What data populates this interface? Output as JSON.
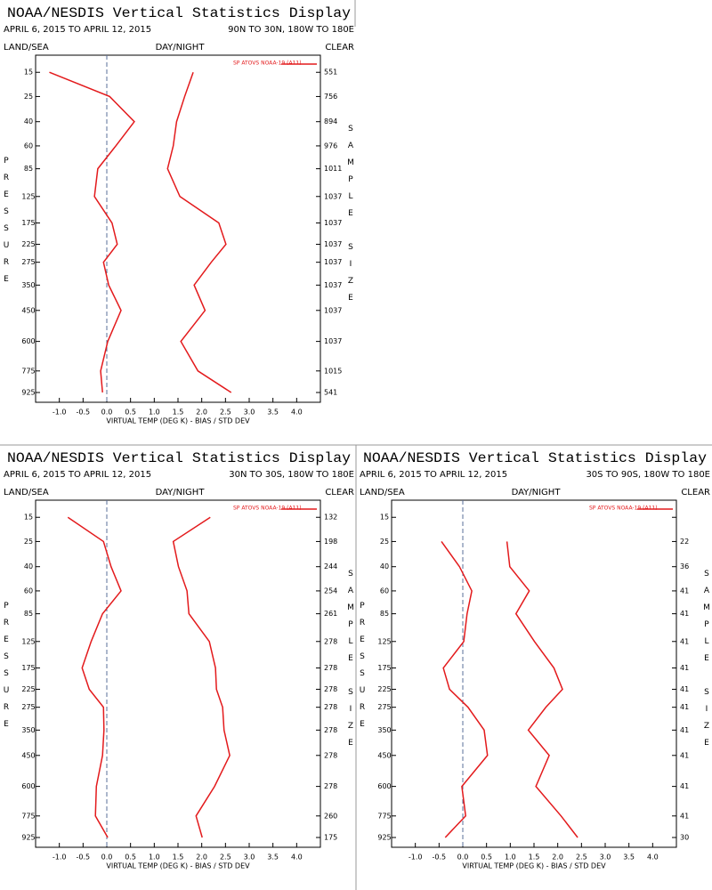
{
  "chart_data": [
    {
      "type": "profile",
      "title": "NOAA/NESDIS Vertical Statistics Display",
      "period": "APRIL 6, 2015 TO APRIL 12, 2015",
      "region": "90N TO 30N, 180W TO 180E",
      "header_left": "LAND/SEA",
      "header_center": "DAY/NIGHT",
      "header_right": "CLEAR",
      "y_label": "PRESSURE",
      "y2_label": "SAMPLE SIZE",
      "x_label": "VIRTUAL TEMP (DEG K) - BIAS / STD DEV",
      "y": [
        15,
        25,
        40,
        60,
        85,
        125,
        175,
        225,
        275,
        350,
        450,
        600,
        775,
        925
      ],
      "yscale": "fourth-root",
      "ylim": [
        10,
        1000
      ],
      "yticks": [
        15,
        25,
        40,
        60,
        85,
        125,
        175,
        225,
        275,
        350,
        450,
        600,
        775,
        925
      ],
      "xlim": [
        -1.5,
        4.5
      ],
      "xticks": [
        {
          "value": -1,
          "label": "-1.0"
        },
        {
          "value": -0.5,
          "label": "-0.5"
        },
        {
          "value": 0,
          "label": "0.0"
        },
        {
          "value": 0.5,
          "label": "0.5"
        },
        {
          "value": 1,
          "label": "1.0"
        },
        {
          "value": 1.5,
          "label": "1.5"
        },
        {
          "value": 2,
          "label": "2.0"
        },
        {
          "value": 2.5,
          "label": "2.5"
        },
        {
          "value": 3,
          "label": "3.0"
        },
        {
          "value": 3.5,
          "label": "3.5"
        },
        {
          "value": 4,
          "label": "4.0"
        }
      ],
      "zero_line": true,
      "series": [
        {
          "name": "SP ATOVS NOAA-19 (A11)",
          "color": "#e31a1c",
          "bias": [
            -1.21,
            0.06,
            0.58,
            0.19,
            -0.19,
            -0.26,
            0.11,
            0.22,
            -0.07,
            0.04,
            0.3,
            0.02,
            -0.13,
            -0.09
          ],
          "std_dev": [
            1.82,
            1.64,
            1.47,
            1.4,
            1.28,
            1.54,
            2.36,
            2.51,
            2.2,
            1.84,
            2.07,
            1.56,
            1.92,
            2.62
          ]
        }
      ],
      "sample_size": [
        551,
        756,
        894,
        976,
        1011,
        1037,
        1037,
        1037,
        1037,
        1037,
        1037,
        1037,
        1015,
        541
      ]
    },
    {
      "type": "profile",
      "title": "NOAA/NESDIS Vertical Statistics Display",
      "period": "APRIL 6, 2015 TO APRIL 12, 2015",
      "region": "30N TO 30S, 180W TO 180E",
      "header_left": "LAND/SEA",
      "header_center": "DAY/NIGHT",
      "header_right": "CLEAR",
      "y_label": "PRESSURE",
      "y2_label": "SAMPLE SIZE",
      "x_label": "VIRTUAL TEMP (DEG K) - BIAS / STD DEV",
      "y": [
        15,
        25,
        40,
        60,
        85,
        125,
        175,
        225,
        275,
        350,
        450,
        600,
        775,
        925
      ],
      "yscale": "fourth-root",
      "ylim": [
        10,
        1000
      ],
      "yticks": [
        15,
        25,
        40,
        60,
        85,
        125,
        175,
        225,
        275,
        350,
        450,
        600,
        775,
        925
      ],
      "xlim": [
        -1.5,
        4.5
      ],
      "xticks": [
        {
          "value": -1,
          "label": "-1.0"
        },
        {
          "value": -0.5,
          "label": "-0.5"
        },
        {
          "value": 0,
          "label": "0.0"
        },
        {
          "value": 0.5,
          "label": "0.5"
        },
        {
          "value": 1,
          "label": "1.0"
        },
        {
          "value": 1.5,
          "label": "1.5"
        },
        {
          "value": 2,
          "label": "2.0"
        },
        {
          "value": 2.5,
          "label": "2.5"
        },
        {
          "value": 3,
          "label": "3.0"
        },
        {
          "value": 3.5,
          "label": "3.5"
        },
        {
          "value": 4,
          "label": "4.0"
        }
      ],
      "zero_line": true,
      "series": [
        {
          "name": "SP ATOVS NOAA-19 (A11)",
          "color": "#e31a1c",
          "bias": [
            -0.82,
            -0.07,
            0.09,
            0.3,
            -0.09,
            -0.33,
            -0.52,
            -0.37,
            -0.07,
            -0.06,
            -0.09,
            -0.22,
            -0.24,
            0.02
          ],
          "std_dev": [
            2.18,
            1.4,
            1.51,
            1.69,
            1.73,
            2.16,
            2.29,
            2.31,
            2.44,
            2.47,
            2.59,
            2.27,
            1.88,
            2.01
          ]
        }
      ],
      "sample_size": [
        132,
        198,
        244,
        254,
        261,
        278,
        278,
        278,
        278,
        278,
        278,
        278,
        260,
        175
      ]
    },
    {
      "type": "profile",
      "title": "NOAA/NESDIS Vertical Statistics Display",
      "period": "APRIL 6, 2015 TO APRIL 12, 2015",
      "region": "30S TO 90S, 180W TO 180E",
      "header_left": "LAND/SEA",
      "header_center": "DAY/NIGHT",
      "header_right": "CLEAR",
      "y_label": "PRESSURE",
      "y2_label": "SAMPLE SIZE",
      "x_label": "VIRTUAL TEMP (DEG K) - BIAS / STD DEV",
      "y": [
        15,
        25,
        40,
        60,
        85,
        125,
        175,
        225,
        275,
        350,
        450,
        600,
        775,
        925
      ],
      "yscale": "fourth-root",
      "ylim": [
        10,
        1000
      ],
      "yticks": [
        15,
        25,
        40,
        60,
        85,
        125,
        175,
        225,
        275,
        350,
        450,
        600,
        775,
        925
      ],
      "xlim": [
        -1.5,
        4.5
      ],
      "xticks": [
        {
          "value": -1,
          "label": "-1.0"
        },
        {
          "value": -0.5,
          "label": "-0.5"
        },
        {
          "value": 0,
          "label": "0.0"
        },
        {
          "value": 0.5,
          "label": "0.5"
        },
        {
          "value": 1,
          "label": "1.0"
        },
        {
          "value": 1.5,
          "label": "1.5"
        },
        {
          "value": 2,
          "label": "2.0"
        },
        {
          "value": 2.5,
          "label": "2.5"
        },
        {
          "value": 3,
          "label": "3.0"
        },
        {
          "value": 3.5,
          "label": "3.5"
        },
        {
          "value": 4,
          "label": "4.0"
        }
      ],
      "zero_line": true,
      "series": [
        {
          "name": "SP ATOVS NOAA-19 (A11)",
          "color": "#e31a1c",
          "bias": [
            null,
            -0.45,
            -0.07,
            0.19,
            0.09,
            0.02,
            -0.41,
            -0.28,
            0.11,
            0.45,
            0.52,
            -0.02,
            0.06,
            -0.37
          ],
          "std_dev": [
            null,
            0.93,
            0.99,
            1.4,
            1.12,
            1.51,
            1.92,
            2.1,
            1.75,
            1.38,
            1.82,
            1.54,
            2.07,
            2.42
          ]
        }
      ],
      "sample_size": [
        null,
        22,
        36,
        41,
        41,
        41,
        41,
        41,
        41,
        41,
        41,
        41,
        41,
        30
      ]
    }
  ]
}
